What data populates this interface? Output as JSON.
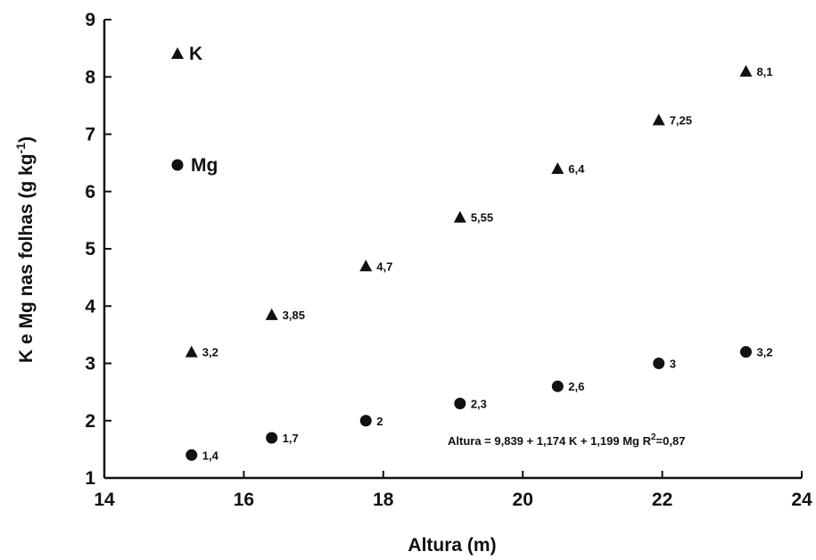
{
  "chart_data": {
    "type": "scatter",
    "xlabel": "Altura (m)",
    "ylabel": "K e Mg nas folhas (g kg",
    "ylabel_sup": "-1",
    "ylabel_close": ")",
    "xlim": [
      14,
      24
    ],
    "ylim": [
      1,
      9
    ],
    "xticks": [
      14,
      16,
      18,
      20,
      22,
      24
    ],
    "yticks": [
      1,
      2,
      3,
      4,
      5,
      6,
      7,
      8,
      9
    ],
    "grid": false,
    "legend_position": "top-left",
    "series": [
      {
        "name": "K",
        "marker": "triangle",
        "color": "#111111",
        "x": [
          15.25,
          16.4,
          17.75,
          19.1,
          20.5,
          21.95,
          23.2
        ],
        "y": [
          3.2,
          3.85,
          4.7,
          5.55,
          6.4,
          7.25,
          8.1
        ],
        "labels": [
          "3,2",
          "3,85",
          "4,7",
          "5,55",
          "6,4",
          "7,25",
          "8,1"
        ]
      },
      {
        "name": "Mg",
        "marker": "circle",
        "color": "#111111",
        "x": [
          15.25,
          16.4,
          17.75,
          19.1,
          20.5,
          21.95,
          23.2
        ],
        "y": [
          1.4,
          1.7,
          2.0,
          2.3,
          2.6,
          3.0,
          3.2
        ],
        "labels": [
          "1,4",
          "1,7",
          "2",
          "2,3",
          "2,6",
          "3",
          "3,2"
        ]
      }
    ],
    "annotation": {
      "text_main": "Altura = 9,839 + 1,174 K + 1,199 Mg  R",
      "text_sup": "2",
      "text_tail": "=0,87"
    }
  }
}
